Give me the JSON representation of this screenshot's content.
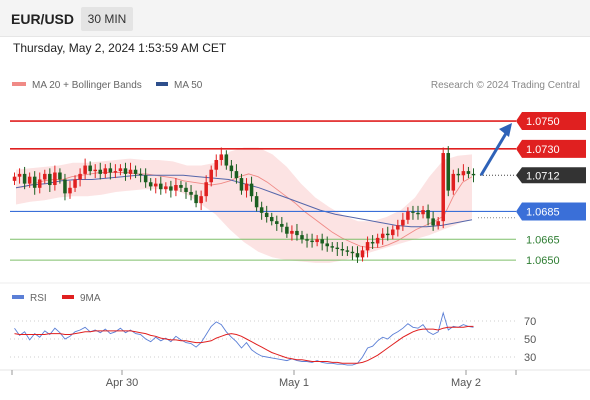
{
  "header": {
    "symbol": "EUR/USD",
    "timeframe": "30 MIN"
  },
  "datetime": "Thursday, May 2, 2024 1:53:59 AM CET",
  "legend": [
    {
      "label": "MA 20 + Bollinger Bands",
      "color": "#f08a86"
    },
    {
      "label": "MA 50",
      "color": "#2e4f8c"
    }
  ],
  "credit": "Research © 2024 Trading Central",
  "rsi_legend": [
    {
      "label": "RSI",
      "color": "#5b7fd6"
    },
    {
      "label": "9MA",
      "color": "#e02020"
    }
  ],
  "colors": {
    "up": "#e02020",
    "down": "#1b5e20",
    "resistance": "#e02020",
    "pivot": "#3a6fd8",
    "support": "#7fbf6a",
    "bands": "#fbdada",
    "ma20": "#f08a86",
    "ma50": "#5566aa",
    "arrow": "#2e62b8"
  },
  "chart_data": [
    {
      "type": "candlestick",
      "x": [
        "Apr 30",
        "May 1",
        "May 2"
      ],
      "ylim": [
        1.0635,
        1.0768
      ],
      "current_price": "1.0712",
      "levels": [
        {
          "value": 1.075,
          "label": "1.0750",
          "kind": "resistance"
        },
        {
          "value": 1.073,
          "label": "1.0730",
          "kind": "resistance"
        },
        {
          "value": 1.0685,
          "label": "1.0685",
          "kind": "pivot"
        },
        {
          "value": 1.0665,
          "label": "1.0665",
          "kind": "support"
        },
        {
          "value": 1.065,
          "label": "1.0650",
          "kind": "support"
        }
      ],
      "forecast": {
        "from": 1.0711,
        "to": 1.075,
        "direction": "up"
      },
      "closes": [
        1.071,
        1.0712,
        1.0705,
        1.071,
        1.0702,
        1.0708,
        1.0712,
        1.0704,
        1.0713,
        1.0708,
        1.0698,
        1.0702,
        1.0708,
        1.0712,
        1.0718,
        1.0714,
        1.0715,
        1.0712,
        1.0716,
        1.0713,
        1.0714,
        1.0716,
        1.0712,
        1.0715,
        1.0712,
        1.0711,
        1.0706,
        1.0703,
        1.0705,
        1.0701,
        1.0703,
        1.07,
        1.0704,
        1.0702,
        1.0699,
        1.0697,
        1.0691,
        1.0696,
        1.0706,
        1.0715,
        1.0722,
        1.0726,
        1.0718,
        1.0714,
        1.0709,
        1.07,
        1.0705,
        1.0696,
        1.0688,
        1.0684,
        1.0681,
        1.0678,
        1.0676,
        1.0674,
        1.0669,
        1.0671,
        1.0668,
        1.0665,
        1.0664,
        1.0663,
        1.0665,
        1.0662,
        1.066,
        1.0659,
        1.0658,
        1.0657,
        1.0656,
        1.0655,
        1.0652,
        1.0657,
        1.0663,
        1.0662,
        1.0666,
        1.0669,
        1.0668,
        1.0672,
        1.0675,
        1.0679,
        1.0685,
        1.0684,
        1.0683,
        1.0686,
        1.068,
        1.0675,
        1.0678,
        1.0727,
        1.07,
        1.0712,
        1.0711,
        1.0714,
        1.0712,
        1.0711
      ],
      "ma20": [
        1.0702,
        1.0703,
        1.0705,
        1.0707,
        1.0708,
        1.0708,
        1.071,
        1.0711,
        1.0712,
        1.0713,
        1.0713,
        1.0713,
        1.0713,
        1.0712,
        1.0712,
        1.0711,
        1.071,
        1.0709,
        1.0707,
        1.0706,
        1.0705,
        1.0704,
        1.0705,
        1.0707,
        1.071,
        1.0712,
        1.071,
        1.0706,
        1.0701,
        1.0696,
        1.0691,
        1.0685,
        1.068,
        1.0675,
        1.067,
        1.0666,
        1.0663,
        1.066,
        1.0659,
        1.0659,
        1.0661,
        1.0664,
        1.0668,
        1.0672,
        1.0675,
        1.0678,
        1.0682,
        1.0696,
        1.0706,
        1.071
      ],
      "ma50": [
        1.0702,
        1.0704,
        1.0705,
        1.0707,
        1.0708,
        1.0708,
        1.0709,
        1.071,
        1.0711,
        1.0711,
        1.0711,
        1.0711,
        1.071,
        1.0709,
        1.0708,
        1.0705,
        1.0702,
        1.0698,
        1.0694,
        1.069,
        1.0686,
        1.0683,
        1.0681,
        1.0679,
        1.0677,
        1.0675,
        1.0674,
        1.0674,
        1.0675,
        1.0677,
        1.0679
      ],
      "band_upper": [
        1.0715,
        1.0716,
        1.0717,
        1.0718,
        1.072,
        1.072,
        1.0721,
        1.0722,
        1.0723,
        1.0722,
        1.0722,
        1.0721,
        1.0718,
        1.0718,
        1.072,
        1.0728,
        1.0731,
        1.0731,
        1.0726,
        1.0717,
        1.0705,
        1.0695,
        1.0688,
        1.0682,
        1.0678,
        1.0678,
        1.0681,
        1.0686,
        1.0695,
        1.071,
        1.0722,
        1.0725,
        1.0726
      ],
      "band_lower": [
        1.069,
        1.0692,
        1.0693,
        1.0695,
        1.0696,
        1.0696,
        1.0697,
        1.0699,
        1.07,
        1.0701,
        1.0701,
        1.0701,
        1.0697,
        1.069,
        1.0683,
        1.0672,
        1.0663,
        1.0656,
        1.0652,
        1.065,
        1.0649,
        1.0648,
        1.0648,
        1.065,
        1.0653,
        1.0656,
        1.0659,
        1.0662,
        1.0665,
        1.0668,
        1.0672,
        1.0676,
        1.068
      ]
    },
    {
      "type": "line",
      "ylim": [
        20,
        80
      ],
      "ticks": [
        70,
        50,
        30
      ],
      "series": [
        {
          "name": "RSI",
          "values": [
            62,
            54,
            58,
            49,
            56,
            52,
            59,
            55,
            62,
            57,
            50,
            53,
            58,
            60,
            63,
            58,
            60,
            57,
            61,
            56,
            58,
            62,
            57,
            60,
            56,
            55,
            50,
            47,
            52,
            48,
            51,
            47,
            53,
            49,
            46,
            45,
            41,
            46,
            55,
            64,
            69,
            66,
            58,
            52,
            47,
            40,
            46,
            38,
            34,
            31,
            30,
            29,
            28,
            27,
            26,
            28,
            26,
            25,
            25,
            24,
            26,
            24,
            23,
            23,
            22,
            22,
            21,
            21,
            23,
            30,
            40,
            42,
            48,
            52,
            50,
            55,
            58,
            62,
            67,
            63,
            62,
            66,
            58,
            55,
            58,
            79,
            60,
            64,
            63,
            66,
            64,
            63
          ]
        },
        {
          "name": "9MA",
          "values": [
            56,
            55,
            55,
            55,
            55,
            55,
            55,
            56,
            56,
            56,
            55,
            55,
            56,
            57,
            58,
            58,
            59,
            59,
            59,
            59,
            59,
            59,
            59,
            59,
            58,
            57,
            56,
            54,
            53,
            51,
            50,
            49,
            49,
            48,
            48,
            47,
            46,
            46,
            47,
            48,
            51,
            53,
            55,
            56,
            55,
            53,
            50,
            47,
            44,
            41,
            38,
            35,
            33,
            31,
            29,
            28,
            27,
            27,
            26,
            25,
            25,
            25,
            25,
            24,
            24,
            23,
            23,
            23,
            23,
            24,
            26,
            29,
            32,
            36,
            40,
            44,
            48,
            52,
            55,
            58,
            60,
            61,
            61,
            61,
            60,
            62,
            63,
            63,
            63,
            63,
            64,
            64
          ]
        }
      ]
    }
  ],
  "xaxis": {
    "labels": [
      "Apr 30",
      "May 1",
      "May 2"
    ]
  }
}
